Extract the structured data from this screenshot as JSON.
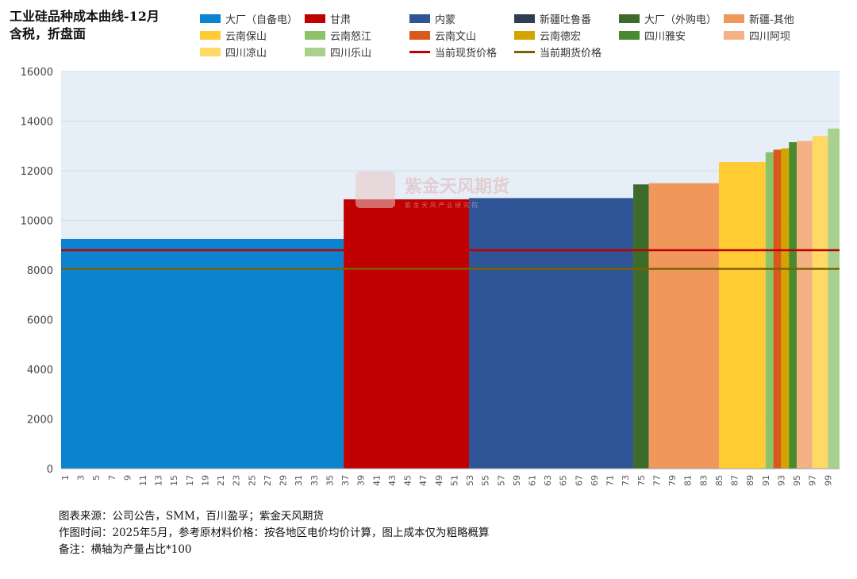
{
  "title_line1": "工业硅品种成本曲线-12月",
  "title_line2": "含税，折盘面",
  "watermark": {
    "brand": "紫金天风期货",
    "sub": "紫 金 天 风 产 业 研 究 院"
  },
  "footer": {
    "source": "图表来源：公司公告，SMM，百川盈孚；紫金天风期货",
    "date": "作图时间：2025年5月，参考原材料价格：按各地区电价均价计算，图上成本仅为粗略概算",
    "note": "备注：横轴为产量占比*100"
  },
  "chart_data": {
    "type": "bar",
    "title": "工业硅品种成本曲线-12月",
    "ylim": [
      0,
      16000
    ],
    "yticks": [
      0,
      2000,
      4000,
      6000,
      8000,
      10000,
      12000,
      14000,
      16000
    ],
    "xlim": [
      0,
      100
    ],
    "xticks": [
      1,
      3,
      5,
      7,
      9,
      11,
      13,
      15,
      17,
      19,
      21,
      23,
      25,
      27,
      29,
      31,
      33,
      35,
      37,
      39,
      41,
      43,
      45,
      47,
      49,
      51,
      53,
      55,
      57,
      59,
      61,
      63,
      65,
      67,
      69,
      71,
      73,
      75,
      77,
      79,
      81,
      83,
      85,
      87,
      89,
      91,
      93,
      95,
      97,
      99
    ],
    "grid": true,
    "legend_position": "top",
    "background": "#e6eff7",
    "segments": [
      {
        "name": "大厂（自备电）",
        "color": "#0b84d0",
        "x0": 0,
        "x1": 36.3,
        "value": 9250
      },
      {
        "name": "甘肃",
        "color": "#c00000",
        "x0": 36.3,
        "x1": 52.4,
        "value": 10850
      },
      {
        "name": "内蒙",
        "color": "#2f5597",
        "x0": 52.4,
        "x1": 73.5,
        "value": 10900
      },
      {
        "name": "新疆吐鲁番",
        "color": "#2e3e52",
        "x0": 73.5,
        "x1": 73.5,
        "value": 10900
      },
      {
        "name": "大厂（外购电）",
        "color": "#3f6b2a",
        "x0": 73.5,
        "x1": 75.5,
        "value": 11450
      },
      {
        "name": "新疆-其他",
        "color": "#f0975c",
        "x0": 75.5,
        "x1": 84.5,
        "value": 11500
      },
      {
        "name": "云南保山",
        "color": "#ffcc33",
        "x0": 84.5,
        "x1": 90.5,
        "value": 12350
      },
      {
        "name": "云南怒江",
        "color": "#8cc26a",
        "x0": 90.5,
        "x1": 91.5,
        "value": 12750
      },
      {
        "name": "云南文山",
        "color": "#d9591c",
        "x0": 91.5,
        "x1": 92.5,
        "value": 12850
      },
      {
        "name": "云南德宏",
        "color": "#d4a500",
        "x0": 92.5,
        "x1": 93.5,
        "value": 12900
      },
      {
        "name": "四川雅安",
        "color": "#4a8a2e",
        "x0": 93.5,
        "x1": 94.5,
        "value": 13150
      },
      {
        "name": "四川阿坝",
        "color": "#f4b183",
        "x0": 94.5,
        "x1": 96.5,
        "value": 13200
      },
      {
        "name": "四川凉山",
        "color": "#ffd966",
        "x0": 96.5,
        "x1": 98.5,
        "value": 13400
      },
      {
        "name": "四川乐山",
        "color": "#a9d18e",
        "x0": 98.5,
        "x1": 100,
        "value": 13700
      }
    ],
    "lines": [
      {
        "name": "当前现货价格",
        "color": "#c00000",
        "value": 8800
      },
      {
        "name": "当前期货价格",
        "color": "#7f6000",
        "value": 8050
      }
    ]
  }
}
